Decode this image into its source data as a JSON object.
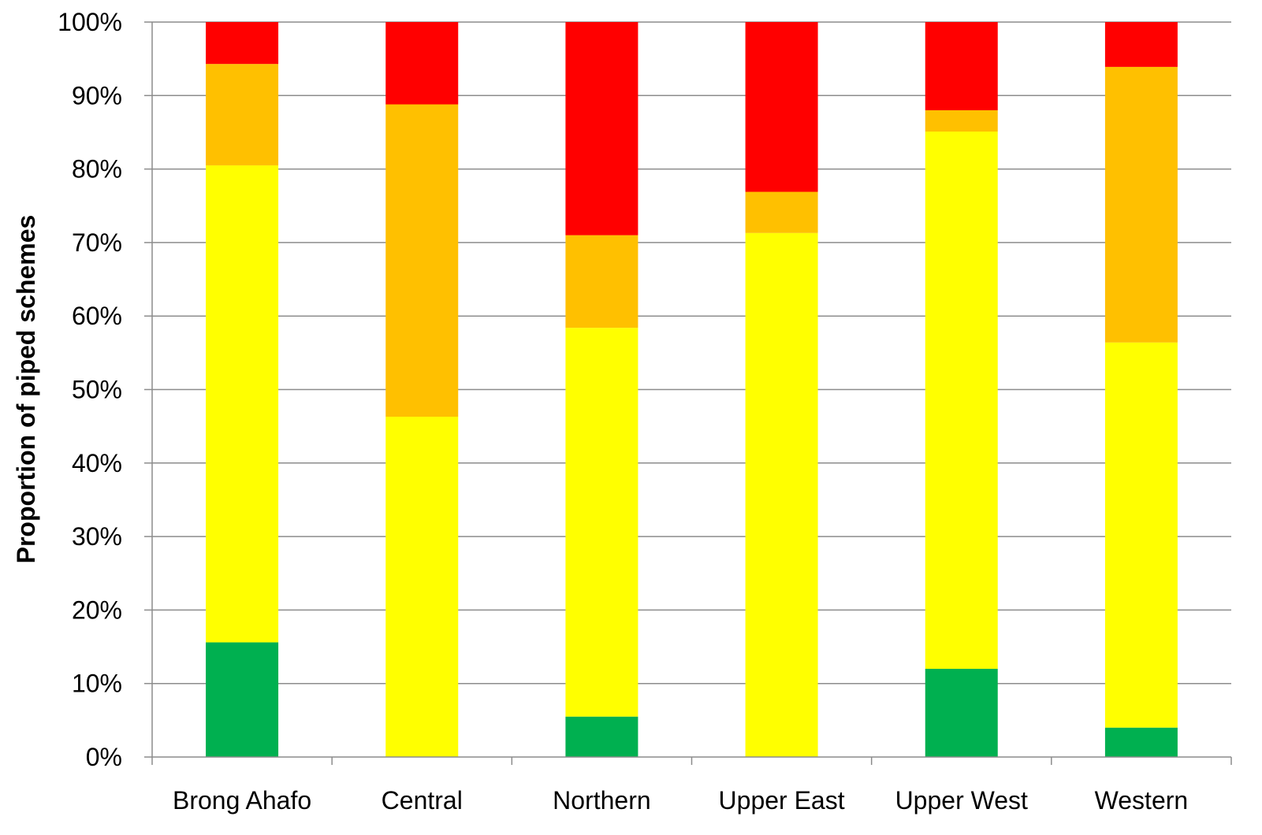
{
  "chart_data": {
    "type": "bar",
    "stacked": true,
    "title": "",
    "xlabel": "",
    "ylabel": "Proportion  of piped schemes",
    "ylim": [
      0,
      100
    ],
    "yticks": [
      "0%",
      "10%",
      "20%",
      "30%",
      "40%",
      "50%",
      "60%",
      "70%",
      "80%",
      "90%",
      "100%"
    ],
    "categories": [
      "Brong Ahafo",
      "Central",
      "Northern",
      "Upper East",
      "Upper West",
      "Western"
    ],
    "grid": true,
    "legend": "none",
    "series": [
      {
        "color": "#00B050",
        "values": [
          15.6,
          0,
          5.5,
          0,
          12.0,
          4.0
        ]
      },
      {
        "color": "#FFFF00",
        "values": [
          64.9,
          46.3,
          52.9,
          71.3,
          73.1,
          52.4
        ]
      },
      {
        "color": "#FFC000",
        "values": [
          13.8,
          42.5,
          12.6,
          5.6,
          2.9,
          37.5
        ]
      },
      {
        "color": "#FF0000",
        "values": [
          5.7,
          11.2,
          29.0,
          23.1,
          12.0,
          6.1
        ]
      }
    ]
  }
}
